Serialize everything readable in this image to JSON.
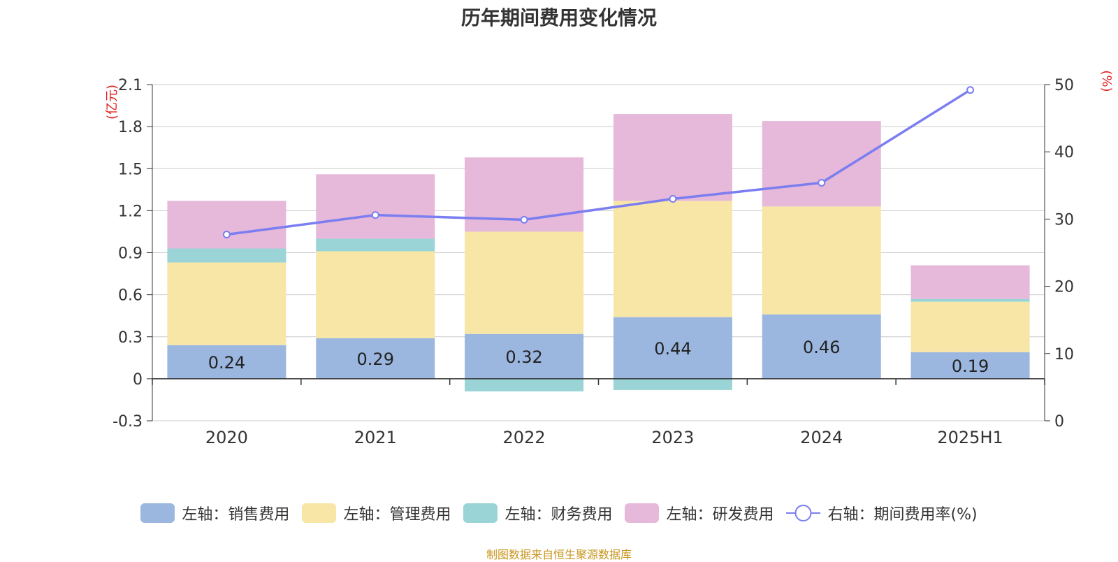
{
  "colors": {
    "sales": "#9bb7e0",
    "admin": "#f7e6a6",
    "finance": "#9ad4d6",
    "rnd": "#e6b8da",
    "rate": "#7b7ef0",
    "unit": "#e02020",
    "source": "#c8951e"
  },
  "chart_data": {
    "type": "bar",
    "title": "历年期间费用变化情况",
    "categories": [
      "2020",
      "2021",
      "2022",
      "2023",
      "2024",
      "2025H1"
    ],
    "left_axis": {
      "unit": "(亿元)",
      "ticks": [
        "-0.3",
        "0",
        "0.3",
        "0.6",
        "0.9",
        "1.2",
        "1.5",
        "1.8",
        "2.1"
      ],
      "ylim": [
        -0.3,
        2.1
      ]
    },
    "right_axis": {
      "unit": "(%)",
      "ticks": [
        "0",
        "10",
        "20",
        "30",
        "40",
        "50"
      ],
      "ylim": [
        0,
        50
      ]
    },
    "series": [
      {
        "key": "sales",
        "name": "左轴：销售费用",
        "type": "bar",
        "stack": true,
        "values": [
          0.24,
          0.29,
          0.32,
          0.44,
          0.46,
          0.19
        ],
        "labels": [
          "0.24",
          "0.29",
          "0.32",
          "0.44",
          "0.46",
          "0.19"
        ]
      },
      {
        "key": "admin",
        "name": "左轴：管理费用",
        "type": "bar",
        "stack": true,
        "values": [
          0.59,
          0.62,
          0.73,
          0.83,
          0.77,
          0.36
        ]
      },
      {
        "key": "finance",
        "name": "左轴：财务费用",
        "type": "bar",
        "stack": true,
        "values": [
          0.1,
          0.09,
          -0.09,
          -0.08,
          0.0,
          0.02
        ]
      },
      {
        "key": "rnd",
        "name": "左轴：研发费用",
        "type": "bar",
        "stack": true,
        "values": [
          0.34,
          0.46,
          0.53,
          0.62,
          0.61,
          0.24
        ]
      },
      {
        "key": "rate",
        "name": "右轴：期间费用率(%)",
        "type": "line",
        "axis": "right",
        "values": [
          27.7,
          30.6,
          29.9,
          33.0,
          35.4,
          49.2
        ]
      }
    ],
    "grid": true,
    "legend_position": "bottom"
  },
  "source": "制图数据来自恒生聚源数据库"
}
